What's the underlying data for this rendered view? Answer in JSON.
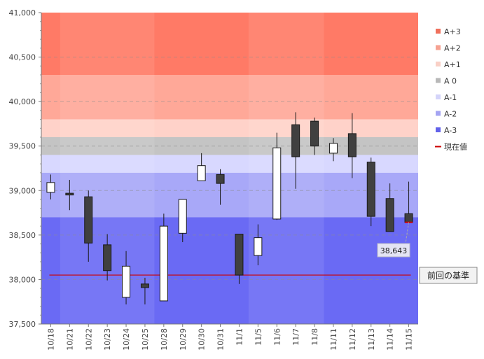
{
  "chart_data": {
    "type": "candlestick",
    "ylim": [
      37500,
      41000
    ],
    "yticks": [
      37500,
      38000,
      38500,
      39000,
      39500,
      40000,
      40500,
      41000
    ],
    "ytick_labels": [
      "37,500",
      "38,000",
      "38,500",
      "39,000",
      "39,500",
      "40,000",
      "40,500",
      "41,000"
    ],
    "categories": [
      "10/18",
      "10/21",
      "10/22",
      "10/23",
      "10/24",
      "10/25",
      "10/28",
      "10/29",
      "10/30",
      "10/31",
      "11/1",
      "11/5",
      "11/6",
      "11/7",
      "11/8",
      "11/11",
      "11/12",
      "11/13",
      "11/14",
      "11/15"
    ],
    "candles": [
      {
        "date": "10/18",
        "open": 38980,
        "high": 39180,
        "low": 38900,
        "close": 39090
      },
      {
        "date": "10/21",
        "open": 38970,
        "high": 39120,
        "low": 38780,
        "close": 38950
      },
      {
        "date": "10/22",
        "open": 38930,
        "high": 39000,
        "low": 38200,
        "close": 38410
      },
      {
        "date": "10/23",
        "open": 38390,
        "high": 38510,
        "low": 37990,
        "close": 38100
      },
      {
        "date": "10/24",
        "open": 37800,
        "high": 38320,
        "low": 37720,
        "close": 38150
      },
      {
        "date": "10/25",
        "open": 37950,
        "high": 38020,
        "low": 37720,
        "close": 37910
      },
      {
        "date": "10/28",
        "open": 37760,
        "high": 38740,
        "low": 37760,
        "close": 38600
      },
      {
        "date": "10/29",
        "open": 38520,
        "high": 38900,
        "low": 38420,
        "close": 38900
      },
      {
        "date": "10/30",
        "open": 39110,
        "high": 39420,
        "low": 39110,
        "close": 39280
      },
      {
        "date": "10/31",
        "open": 39180,
        "high": 39240,
        "low": 38840,
        "close": 39080
      },
      {
        "date": "11/1",
        "open": 38510,
        "high": 38510,
        "low": 37950,
        "close": 38050
      },
      {
        "date": "11/5",
        "open": 38270,
        "high": 38620,
        "low": 38160,
        "close": 38470
      },
      {
        "date": "11/6",
        "open": 38680,
        "high": 39650,
        "low": 38670,
        "close": 39480
      },
      {
        "date": "11/7",
        "open": 39740,
        "high": 39880,
        "low": 39020,
        "close": 39380
      },
      {
        "date": "11/8",
        "open": 39780,
        "high": 39820,
        "low": 39400,
        "close": 39500
      },
      {
        "date": "11/11",
        "open": 39420,
        "high": 39590,
        "low": 39330,
        "close": 39530
      },
      {
        "date": "11/12",
        "open": 39640,
        "high": 39870,
        "low": 39140,
        "close": 39380
      },
      {
        "date": "11/13",
        "open": 39320,
        "high": 39370,
        "low": 38600,
        "close": 38710
      },
      {
        "date": "11/14",
        "open": 38910,
        "high": 39080,
        "low": 38540,
        "close": 38540
      },
      {
        "date": "11/15",
        "open": 38740,
        "high": 39100,
        "low": 38630,
        "close": 38643
      }
    ],
    "bands": [
      {
        "name": "A+3",
        "from": 40300,
        "to": 41000,
        "color": "#ff7a66"
      },
      {
        "name": "A+2",
        "from": 39800,
        "to": 40300,
        "color": "#ffa898"
      },
      {
        "name": "A+1",
        "from": 39600,
        "to": 39800,
        "color": "#ffd2c9"
      },
      {
        "name": "A 0",
        "from": 39400,
        "to": 39600,
        "color": "#c4c4c4"
      },
      {
        "name": "A-1",
        "from": 39200,
        "to": 39400,
        "color": "#d8d8ff"
      },
      {
        "name": "A-2",
        "from": 38700,
        "to": 39200,
        "color": "#a8a8f8"
      },
      {
        "name": "A-3",
        "from": 37500,
        "to": 38700,
        "color": "#6a6af4"
      }
    ],
    "legend": [
      {
        "label": "A+3",
        "color": "#f0705c",
        "kind": "square"
      },
      {
        "label": "A+2",
        "color": "#f6a292",
        "kind": "square"
      },
      {
        "label": "A+1",
        "color": "#f9d0c6",
        "kind": "square"
      },
      {
        "label": "A 0",
        "color": "#b8b8b8",
        "kind": "square"
      },
      {
        "label": "A-1",
        "color": "#d4d4fa",
        "kind": "square"
      },
      {
        "label": "A-2",
        "color": "#a4a4f2",
        "kind": "square"
      },
      {
        "label": "A-3",
        "color": "#6262ea",
        "kind": "square"
      },
      {
        "label": "現在値",
        "color": "#cc0000",
        "kind": "line"
      }
    ],
    "current_value": 38643,
    "current_value_label": "38,643",
    "baseline_value": 38050,
    "baseline_label": "前回の基準",
    "week_shading": [
      0,
      1,
      0,
      1,
      0,
      1,
      0,
      1
    ],
    "colors": {
      "up_body": "#ffffff",
      "down_body": "#404040",
      "baseline_line": "#cc0000",
      "current_marker": "#cc0000"
    },
    "grid": true,
    "legend_position": "right"
  }
}
